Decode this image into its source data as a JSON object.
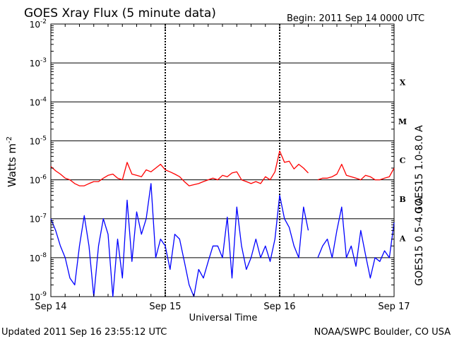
{
  "header": {
    "title": "GOES Xray Flux (5 minute data)",
    "begin": "Begin:  2011 Sep 14 0000 UTC"
  },
  "footer": {
    "updated": "Updated 2011 Sep 16 23:55:12 UTC",
    "credit": "NOAA/SWPC Boulder, CO USA"
  },
  "colors": {
    "long": "#ff0000",
    "short": "#0000ff",
    "axis": "#000000"
  },
  "chart_data": {
    "type": "line",
    "title": "GOES Xray Flux (5 minute data)",
    "xlabel": "Universal Time",
    "ylabel": "Watts m",
    "ylabel_sup": "-2",
    "y_scale": "log",
    "ylim": [
      1e-09,
      0.01
    ],
    "xlim": [
      0,
      72
    ],
    "x_units": "hours since 2011 Sep 14 0000 UTC",
    "x_ticks": [
      {
        "x": 0,
        "label": "Sep 14"
      },
      {
        "x": 24,
        "label": "Sep 15"
      },
      {
        "x": 48,
        "label": "Sep 16"
      },
      {
        "x": 72,
        "label": "Sep 17"
      }
    ],
    "y_ticks": [
      {
        "exp": -2,
        "label": "10",
        "sup": "-2"
      },
      {
        "exp": -3,
        "label": "10",
        "sup": "-3"
      },
      {
        "exp": -4,
        "label": "10",
        "sup": "-4"
      },
      {
        "exp": -5,
        "label": "10",
        "sup": "-5"
      },
      {
        "exp": -6,
        "label": "10",
        "sup": "-6"
      },
      {
        "exp": -7,
        "label": "10",
        "sup": "-7"
      },
      {
        "exp": -8,
        "label": "10",
        "sup": "-8"
      },
      {
        "exp": -9,
        "label": "10",
        "sup": "-9"
      }
    ],
    "flare_classes": [
      {
        "label": "X",
        "exp": -3.5
      },
      {
        "label": "M",
        "exp": -4.5
      },
      {
        "label": "C",
        "exp": -5.5
      },
      {
        "label": "B",
        "exp": -6.5
      },
      {
        "label": "A",
        "exp": -7.5
      }
    ],
    "series": [
      {
        "name": "GOES15 1.0-8.0 A",
        "color": "#ff0000",
        "x": [
          0,
          1,
          2,
          3,
          4,
          5,
          6,
          7,
          8,
          9,
          10,
          11,
          12,
          13,
          14,
          15,
          16,
          17,
          18,
          19,
          20,
          21,
          22,
          23,
          24,
          25,
          26,
          27,
          28,
          29,
          30,
          31,
          32,
          33,
          34,
          35,
          36,
          37,
          38,
          39,
          40,
          41,
          42,
          43,
          44,
          45,
          46,
          47,
          48,
          49,
          50,
          51,
          52,
          53,
          54,
          55,
          56,
          57,
          58,
          59,
          60,
          61,
          62,
          63,
          64,
          65,
          66,
          67,
          68,
          69,
          70,
          71,
          72
        ],
        "values": [
          2.2e-06,
          1.7e-06,
          1.4e-06,
          1.1e-06,
          1e-06,
          8e-07,
          7e-07,
          7e-07,
          8e-07,
          9e-07,
          9e-07,
          1.1e-06,
          1.3e-06,
          1.4e-06,
          1.1e-06,
          1e-06,
          2.8e-06,
          1.4e-06,
          1.3e-06,
          1.2e-06,
          1.8e-06,
          1.6e-06,
          2e-06,
          2.5e-06,
          1.8e-06,
          1.6e-06,
          1.4e-06,
          1.2e-06,
          9e-07,
          7e-07,
          7.5e-07,
          8e-07,
          9e-07,
          1e-06,
          1.1e-06,
          1e-06,
          1.3e-06,
          1.2e-06,
          1.5e-06,
          1.6e-06,
          1e-06,
          9e-07,
          8e-07,
          9e-07,
          8e-07,
          1.2e-06,
          1e-06,
          1.6e-06,
          5.5e-06,
          2.8e-06,
          3e-06,
          1.9e-06,
          2.5e-06,
          2e-06,
          1.5e-06,
          null,
          1e-06,
          1.1e-06,
          1.1e-06,
          1.2e-06,
          1.4e-06,
          2.5e-06,
          1.3e-06,
          1.2e-06,
          1.1e-06,
          1e-06,
          1.3e-06,
          1.2e-06,
          1e-06,
          1e-06,
          1.1e-06,
          1.2e-06,
          2e-06
        ]
      },
      {
        "name": "GOES15 0.5-4.0 A",
        "color": "#0000ff",
        "x": [
          0,
          1,
          2,
          3,
          4,
          5,
          6,
          7,
          8,
          9,
          10,
          11,
          12,
          13,
          14,
          15,
          16,
          17,
          18,
          19,
          20,
          21,
          22,
          23,
          24,
          25,
          26,
          27,
          28,
          29,
          30,
          31,
          32,
          33,
          34,
          35,
          36,
          37,
          38,
          39,
          40,
          41,
          42,
          43,
          44,
          45,
          46,
          47,
          48,
          49,
          50,
          51,
          52,
          53,
          54,
          55,
          56,
          57,
          58,
          59,
          60,
          61,
          62,
          63,
          64,
          65,
          66,
          67,
          68,
          69,
          70,
          71,
          72
        ],
        "values": [
          1e-07,
          5e-08,
          2e-08,
          1e-08,
          3e-09,
          2e-09,
          2e-08,
          1.2e-07,
          2e-08,
          1e-09,
          2e-08,
          1e-07,
          4e-08,
          1e-09,
          3e-08,
          3e-09,
          3e-07,
          8e-09,
          1.5e-07,
          4e-08,
          1e-07,
          8e-07,
          1e-08,
          3e-08,
          2e-08,
          5e-09,
          4e-08,
          3e-08,
          8e-09,
          2e-09,
          1e-09,
          5e-09,
          3e-09,
          8e-09,
          2e-08,
          2e-08,
          1e-08,
          1.1e-07,
          3e-09,
          2e-07,
          2e-08,
          5e-09,
          1e-08,
          3e-08,
          1e-08,
          2e-08,
          8e-09,
          3e-08,
          4e-07,
          1e-07,
          6e-08,
          2e-08,
          1e-08,
          2e-07,
          5e-08,
          null,
          1e-08,
          2e-08,
          3e-08,
          1e-08,
          5e-08,
          2e-07,
          1e-08,
          2e-08,
          6e-09,
          5e-08,
          1.2e-08,
          3e-09,
          1e-08,
          8e-09,
          1.5e-08,
          1e-08,
          8e-08
        ]
      }
    ]
  }
}
